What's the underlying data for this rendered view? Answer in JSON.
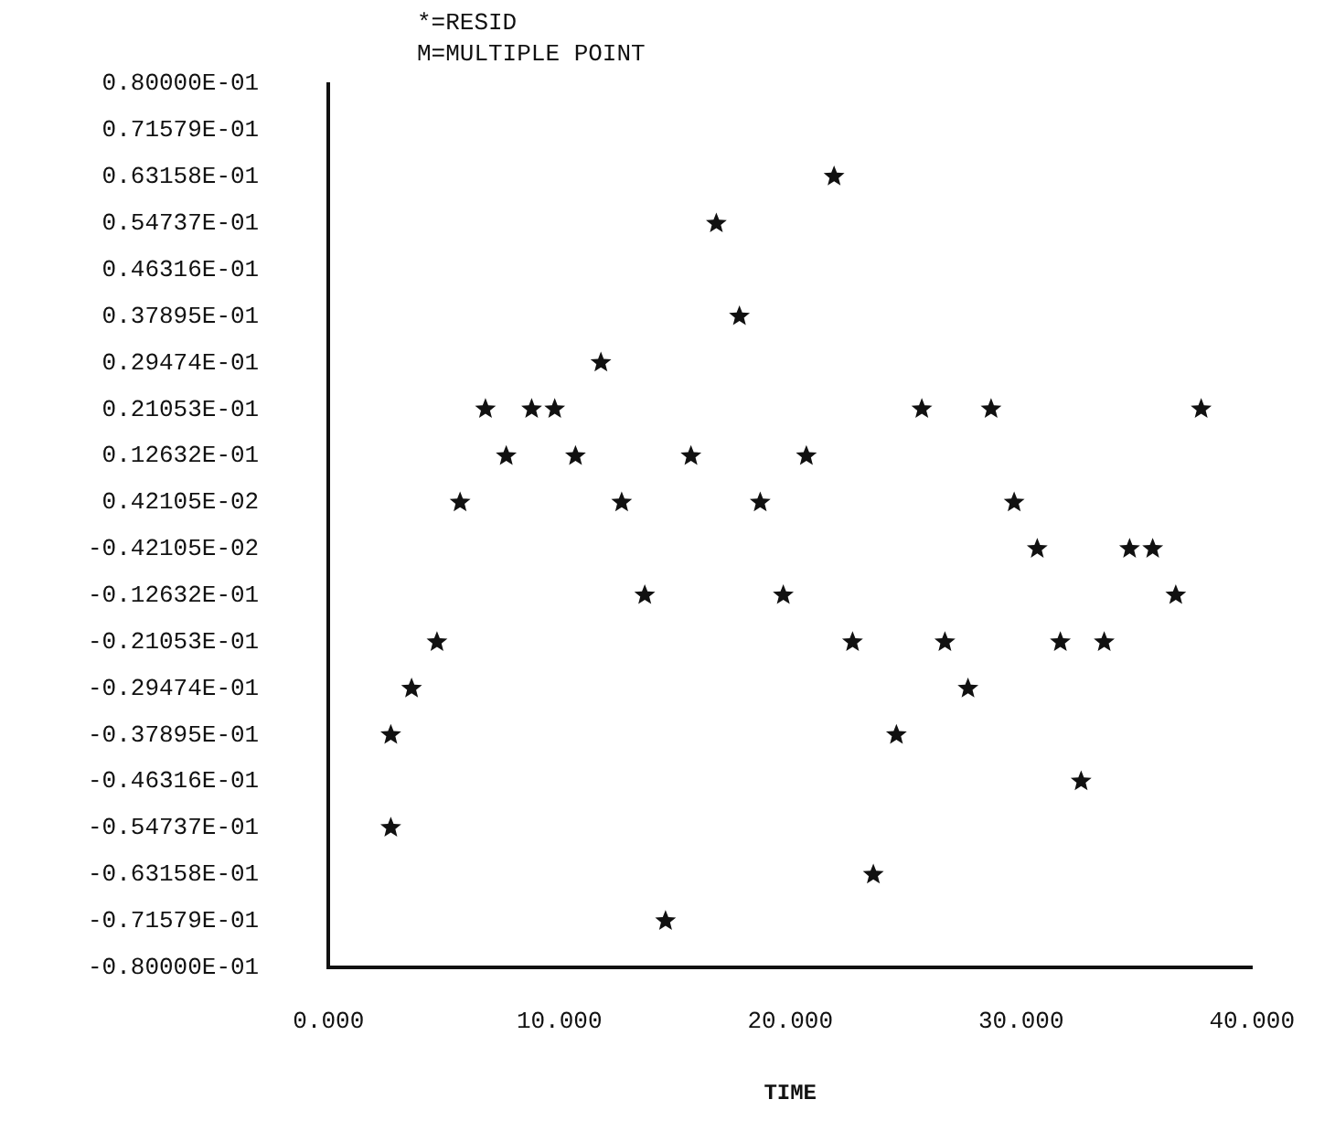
{
  "chart_data": {
    "type": "scatter",
    "xlabel": "TIME",
    "annotations": [
      "*=RESID",
      "M=MULTIPLE POINT"
    ],
    "x": [
      2.7,
      2.7,
      3.6,
      4.7,
      5.7,
      6.8,
      7.7,
      8.8,
      9.8,
      10.7,
      11.8,
      12.7,
      13.7,
      14.6,
      15.7,
      16.8,
      17.8,
      18.7,
      19.7,
      20.7,
      21.9,
      22.7,
      23.6,
      24.6,
      25.7,
      26.7,
      27.7,
      28.7,
      29.7,
      30.7,
      31.7,
      32.6,
      33.6,
      34.7,
      35.7,
      36.7,
      37.8
    ],
    "values": [
      -0.0379,
      -0.0547,
      -0.0295,
      -0.0211,
      0.0042,
      0.0211,
      0.0126,
      0.0211,
      0.0211,
      0.0126,
      0.0295,
      0.0042,
      -0.0126,
      -0.0716,
      0.0126,
      0.0547,
      0.0379,
      0.0042,
      -0.0126,
      0.0126,
      0.0632,
      -0.0211,
      -0.0632,
      -0.0379,
      0.0211,
      -0.0211,
      -0.0295,
      0.0211,
      0.0042,
      -0.0042,
      -0.0211,
      -0.0463,
      -0.0211,
      -0.0042,
      -0.0042,
      -0.0126,
      0.0211
    ],
    "color": "#111111",
    "marker": "star",
    "grid": false,
    "legend": false,
    "xlim": [
      0,
      40
    ],
    "xticks": [
      {
        "value": 0,
        "label": "0.000"
      },
      {
        "value": 10,
        "label": "10.000"
      },
      {
        "value": 20,
        "label": "20.000"
      },
      {
        "value": 30,
        "label": "30.000"
      },
      {
        "value": 40,
        "label": "40.000"
      }
    ],
    "ylim": [
      -0.08,
      0.08
    ],
    "yticks": [
      {
        "value": 0.08,
        "label": "0.80000E-01"
      },
      {
        "value": 0.071579,
        "label": "0.71579E-01"
      },
      {
        "value": 0.063158,
        "label": "0.63158E-01"
      },
      {
        "value": 0.054737,
        "label": "0.54737E-01"
      },
      {
        "value": 0.046316,
        "label": "0.46316E-01"
      },
      {
        "value": 0.037895,
        "label": "0.37895E-01"
      },
      {
        "value": 0.029474,
        "label": "0.29474E-01"
      },
      {
        "value": 0.021053,
        "label": "0.21053E-01"
      },
      {
        "value": 0.012632,
        "label": "0.12632E-01"
      },
      {
        "value": 0.0042105,
        "label": "0.42105E-02"
      },
      {
        "value": -0.0042105,
        "label": "-0.42105E-02"
      },
      {
        "value": -0.012632,
        "label": "-0.12632E-01"
      },
      {
        "value": -0.021053,
        "label": "-0.21053E-01"
      },
      {
        "value": -0.029474,
        "label": "-0.29474E-01"
      },
      {
        "value": -0.037895,
        "label": "-0.37895E-01"
      },
      {
        "value": -0.046316,
        "label": "-0.46316E-01"
      },
      {
        "value": -0.054737,
        "label": "-0.54737E-01"
      },
      {
        "value": -0.063158,
        "label": "-0.63158E-01"
      },
      {
        "value": -0.071579,
        "label": "-0.71579E-01"
      },
      {
        "value": -0.08,
        "label": "-0.80000E-01"
      }
    ]
  }
}
